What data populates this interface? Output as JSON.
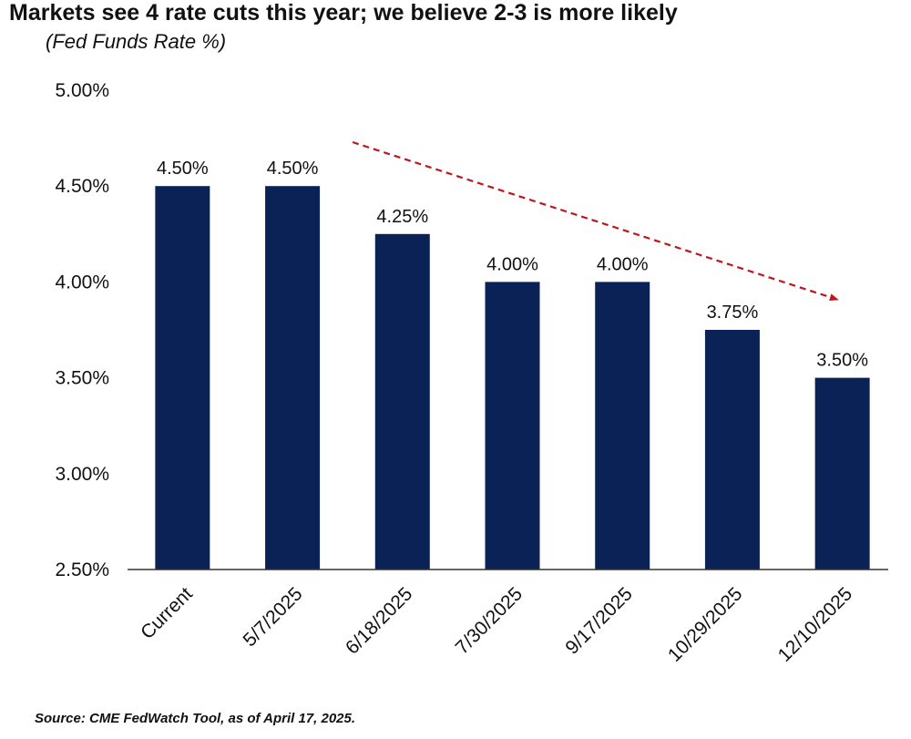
{
  "title": "Markets see 4 rate cuts this year; we believe 2-3 is more likely",
  "subtitle": "(Fed Funds Rate %)",
  "source": "Source: CME FedWatch Tool, as of April 17, 2025.",
  "colors": {
    "bar": "#0b2257",
    "arrow": "#c0161b",
    "axis": "#333333"
  },
  "chart_data": {
    "type": "bar",
    "title": "Markets see 4 rate cuts this year; we believe 2-3 is more likely",
    "subtitle": "(Fed Funds Rate %)",
    "xlabel": "",
    "ylabel": "Fed Funds Rate %",
    "categories": [
      "Current",
      "5/7/2025",
      "6/18/2025",
      "7/30/2025",
      "9/17/2025",
      "10/29/2025",
      "12/10/2025"
    ],
    "values": [
      4.5,
      4.5,
      4.25,
      4.0,
      4.0,
      3.75,
      3.5
    ],
    "data_labels": [
      "4.50%",
      "4.50%",
      "4.25%",
      "4.00%",
      "4.00%",
      "3.75%",
      "3.50%"
    ],
    "ylim": [
      2.5,
      5.0
    ],
    "yticks": [
      2.5,
      3.0,
      3.5,
      4.0,
      4.5,
      5.0
    ],
    "ytick_labels": [
      "2.50%",
      "3.00%",
      "3.50%",
      "4.00%",
      "4.50%",
      "5.00%"
    ],
    "grid": false,
    "annotation": "downward trend arrow (dashed red)"
  }
}
